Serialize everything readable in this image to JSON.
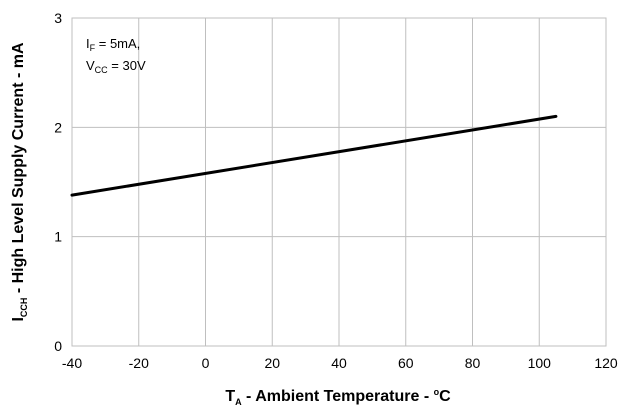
{
  "chart_data": {
    "type": "line",
    "x_axis": {
      "label_main": "T",
      "label_sub": "A",
      "label_rest": " - Ambient Temperature - ",
      "label_sup": "o",
      "label_unit": "C",
      "min": -40,
      "max": 120,
      "ticks": [
        -40,
        -20,
        0,
        20,
        40,
        60,
        80,
        100,
        120
      ]
    },
    "y_axis": {
      "label_main": "I",
      "label_sub": "CCH",
      "label_rest": " - High Level Supply Current - mA",
      "min": 0,
      "max": 3,
      "ticks": [
        0,
        1,
        2,
        3
      ]
    },
    "grid": true,
    "annotation": {
      "line1_main": "I",
      "line1_sub": "F",
      "line1_rest": " = 5mA,",
      "line2_main": "V",
      "line2_sub": "CC",
      "line2_rest": " = 30V"
    },
    "series": [
      {
        "x": [
          -40,
          105
        ],
        "y": [
          1.38,
          2.1
        ],
        "color": "#000000"
      }
    ]
  }
}
